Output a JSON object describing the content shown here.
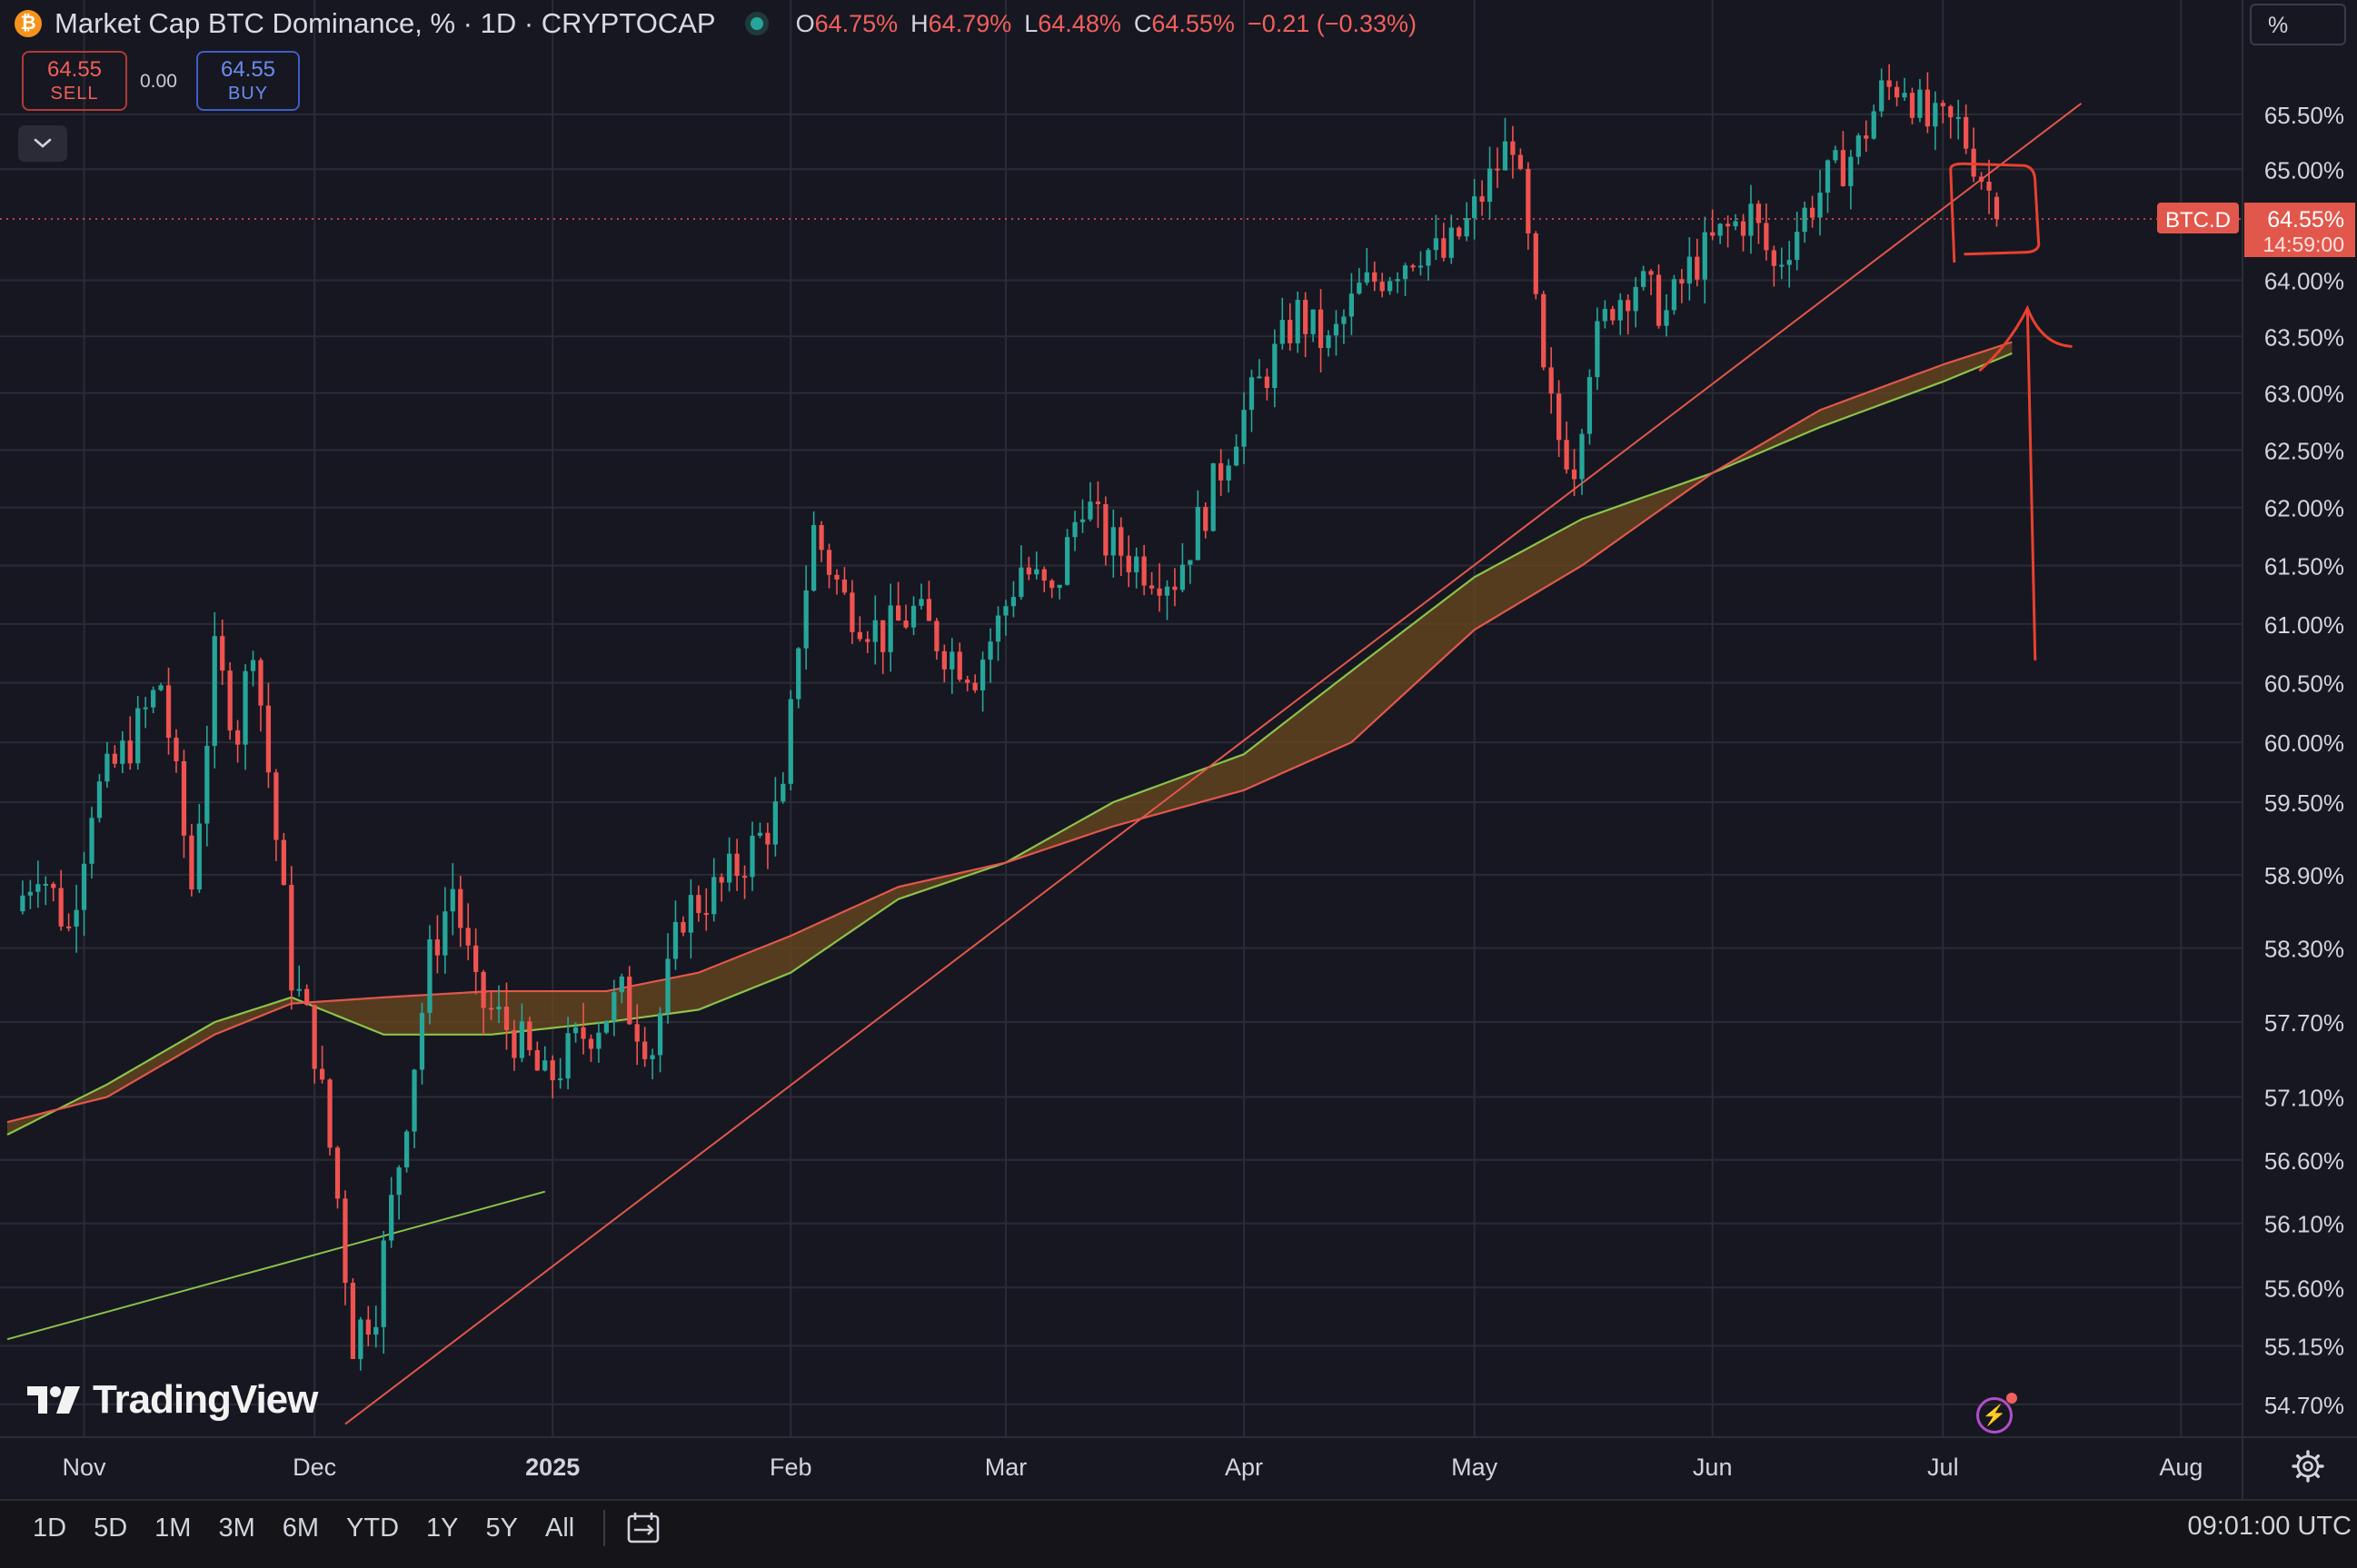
{
  "header": {
    "symbol_badge": "₿",
    "title": "Market Cap BTC Dominance, % · 1D · CRYPTOCAP",
    "ohlc": [
      {
        "k": "O",
        "v": "64.75%"
      },
      {
        "k": "H",
        "v": "64.79%"
      },
      {
        "k": "L",
        "v": "64.48%"
      },
      {
        "k": "C",
        "v": "64.55%"
      },
      {
        "k": "",
        "v": "−0.21 (−0.33%)"
      }
    ]
  },
  "trade": {
    "sell_price": "64.55",
    "sell_label": "SELL",
    "spread": "0.00",
    "buy_price": "64.55",
    "buy_label": "BUY"
  },
  "scale_mode": "%",
  "branding": "TradingView",
  "ranges": [
    "1D",
    "5D",
    "1M",
    "3M",
    "6M",
    "YTD",
    "1Y",
    "5Y",
    "All"
  ],
  "clock": "09:01:00 UTC",
  "colors": {
    "background": "#171721",
    "up": "#26a69a",
    "down": "#ef5350",
    "grid": "#2a2b36",
    "ma_fast": "#8bc34a",
    "ma_slow": "#e2574c",
    "cloud": "#6b4a1e",
    "annotation": "#e8412f",
    "trendline": "#e2574c"
  },
  "icons": [
    "bitcoin-icon",
    "chevron-down-icon",
    "lightning-icon",
    "gear-icon",
    "calendar-range-icon"
  ],
  "chart_data": {
    "type": "candlestick",
    "title": "Market Cap BTC Dominance, %",
    "interval": "1D",
    "source": "CRYPTOCAP",
    "x_ticks": [
      "Nov",
      "Dec",
      "2025",
      "Feb",
      "Mar",
      "Apr",
      "May",
      "Jun",
      "Jul",
      "Aug"
    ],
    "y_ticks": [
      "65.50%",
      "65.00%",
      "64.00%",
      "63.50%",
      "63.00%",
      "62.50%",
      "62.00%",
      "61.50%",
      "61.00%",
      "60.50%",
      "60.00%",
      "59.50%",
      "58.90%",
      "58.30%",
      "57.70%",
      "57.10%",
      "56.60%",
      "56.10%",
      "55.60%",
      "55.15%",
      "54.70%"
    ],
    "y_scale": "log",
    "ylim": [
      54.45,
      66.05
    ],
    "x_start": "2024-10-22",
    "x_end": "2025-08-09",
    "last_price_label": {
      "name": "BTC.D",
      "value": "64.55%",
      "countdown": "14:59:00"
    },
    "ohlc_keypoints": [
      [
        "2024-10-23",
        58.6
      ],
      [
        "2024-10-26",
        59.0
      ],
      [
        "2024-10-30",
        58.45
      ],
      [
        "2024-11-02",
        59.5
      ],
      [
        "2024-11-07",
        60.0
      ],
      [
        "2024-11-11",
        60.5
      ],
      [
        "2024-11-15",
        58.8
      ],
      [
        "2024-11-18",
        60.7
      ],
      [
        "2024-11-21",
        60.1
      ],
      [
        "2024-11-23",
        60.9
      ],
      [
        "2024-11-26",
        59.2
      ],
      [
        "2024-11-28",
        58.1
      ],
      [
        "2024-12-01",
        57.5
      ],
      [
        "2024-12-04",
        56.3
      ],
      [
        "2024-12-06",
        55.2
      ],
      [
        "2024-12-09",
        55.5
      ],
      [
        "2024-12-12",
        56.6
      ],
      [
        "2024-12-16",
        58.2
      ],
      [
        "2024-12-19",
        58.8
      ],
      [
        "2024-12-22",
        57.9
      ],
      [
        "2024-12-27",
        57.6
      ],
      [
        "2024-12-31",
        57.2
      ],
      [
        "2025-01-05",
        57.6
      ],
      [
        "2025-01-10",
        57.9
      ],
      [
        "2025-01-14",
        57.5
      ],
      [
        "2025-01-18",
        58.6
      ],
      [
        "2025-01-23",
        58.8
      ],
      [
        "2025-01-28",
        59.2
      ],
      [
        "2025-01-31",
        59.5
      ],
      [
        "2025-02-02",
        60.9
      ],
      [
        "2025-02-04",
        61.8
      ],
      [
        "2025-02-08",
        61.2
      ],
      [
        "2025-02-13",
        60.9
      ],
      [
        "2025-02-17",
        61.1
      ],
      [
        "2025-02-21",
        60.8
      ],
      [
        "2025-02-25",
        60.6
      ],
      [
        "2025-02-28",
        61.0
      ],
      [
        "2025-03-03",
        61.5
      ],
      [
        "2025-03-07",
        61.2
      ],
      [
        "2025-03-11",
        62.1
      ],
      [
        "2025-03-14",
        61.7
      ],
      [
        "2025-03-19",
        61.5
      ],
      [
        "2025-03-23",
        61.4
      ],
      [
        "2025-03-27",
        62.0
      ],
      [
        "2025-03-31",
        62.7
      ],
      [
        "2025-04-04",
        63.2
      ],
      [
        "2025-04-08",
        63.7
      ],
      [
        "2025-04-12",
        63.4
      ],
      [
        "2025-04-16",
        63.9
      ],
      [
        "2025-04-20",
        64.1
      ],
      [
        "2025-04-24",
        64.3
      ],
      [
        "2025-04-27",
        64.2
      ],
      [
        "2025-04-30",
        64.5
      ],
      [
        "2025-05-03",
        64.9
      ],
      [
        "2025-05-06",
        65.3
      ],
      [
        "2025-05-08",
        64.3
      ],
      [
        "2025-05-10",
        63.1
      ],
      [
        "2025-05-12",
        62.6
      ],
      [
        "2025-05-14",
        62.4
      ],
      [
        "2025-05-16",
        63.3
      ],
      [
        "2025-05-19",
        63.8
      ],
      [
        "2025-05-22",
        64.0
      ],
      [
        "2025-05-26",
        63.7
      ],
      [
        "2025-05-29",
        64.1
      ],
      [
        "2025-06-02",
        64.4
      ],
      [
        "2025-06-06",
        64.6
      ],
      [
        "2025-06-09",
        64.1
      ],
      [
        "2025-06-13",
        64.6
      ],
      [
        "2025-06-16",
        64.9
      ],
      [
        "2025-06-20",
        65.2
      ],
      [
        "2025-06-23",
        65.7
      ],
      [
        "2025-06-26",
        65.8
      ],
      [
        "2025-06-29",
        65.4
      ],
      [
        "2025-07-03",
        65.4
      ],
      [
        "2025-07-05",
        65.1
      ],
      [
        "2025-07-07",
        64.8
      ],
      [
        "2025-07-08",
        64.55
      ]
    ],
    "ma_fast": [
      [
        "2024-10-22",
        56.8
      ],
      [
        "2024-11-04",
        57.2
      ],
      [
        "2024-11-18",
        57.7
      ],
      [
        "2024-11-28",
        57.9
      ],
      [
        "2024-12-10",
        57.6
      ],
      [
        "2024-12-24",
        57.6
      ],
      [
        "2025-01-08",
        57.7
      ],
      [
        "2025-01-20",
        57.8
      ],
      [
        "2025-02-01",
        58.1
      ],
      [
        "2025-02-15",
        58.7
      ],
      [
        "2025-03-01",
        59.0
      ],
      [
        "2025-03-15",
        59.5
      ],
      [
        "2025-04-01",
        59.9
      ],
      [
        "2025-04-15",
        60.6
      ],
      [
        "2025-05-01",
        61.4
      ],
      [
        "2025-05-15",
        61.9
      ],
      [
        "2025-06-01",
        62.3
      ],
      [
        "2025-06-15",
        62.7
      ],
      [
        "2025-07-01",
        63.1
      ],
      [
        "2025-07-10",
        63.35
      ]
    ],
    "ma_slow": [
      [
        "2024-10-22",
        56.9
      ],
      [
        "2024-11-04",
        57.1
      ],
      [
        "2024-11-18",
        57.6
      ],
      [
        "2024-11-28",
        57.85
      ],
      [
        "2024-12-10",
        57.9
      ],
      [
        "2024-12-24",
        57.95
      ],
      [
        "2025-01-08",
        57.95
      ],
      [
        "2025-01-20",
        58.1
      ],
      [
        "2025-02-01",
        58.4
      ],
      [
        "2025-02-15",
        58.8
      ],
      [
        "2025-03-01",
        59.0
      ],
      [
        "2025-03-15",
        59.3
      ],
      [
        "2025-04-01",
        59.6
      ],
      [
        "2025-04-15",
        60.0
      ],
      [
        "2025-05-01",
        60.95
      ],
      [
        "2025-05-15",
        61.5
      ],
      [
        "2025-06-01",
        62.3
      ],
      [
        "2025-06-15",
        62.85
      ],
      [
        "2025-07-01",
        63.25
      ],
      [
        "2025-07-10",
        63.45
      ]
    ],
    "trendlines": [
      {
        "name": "rising-support",
        "from": [
          "2024-12-05",
          54.55
        ],
        "to": [
          "2025-07-19",
          65.6
        ]
      },
      {
        "name": "old-support",
        "from": [
          "2024-10-22",
          55.2
        ],
        "to": [
          "2024-12-31",
          56.35
        ]
      }
    ],
    "annotations": [
      {
        "kind": "box",
        "from": [
          "2025-07-02",
          64.25
        ],
        "to": [
          "2025-07-13",
          65.05
        ]
      },
      {
        "kind": "arrow-up",
        "from": [
          "2025-07-13",
          60.7
        ],
        "to": [
          "2025-07-12",
          63.75
        ]
      }
    ]
  }
}
